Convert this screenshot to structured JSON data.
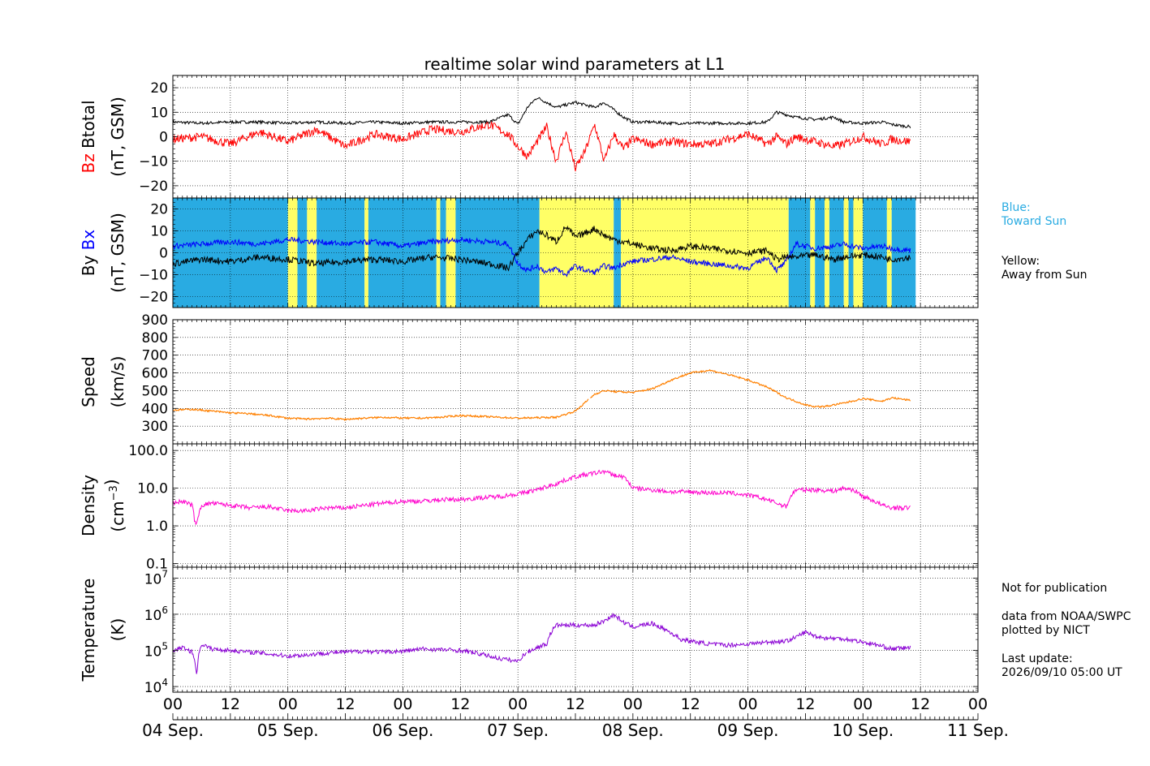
{
  "title": "realtime solar wind parameters at L1",
  "legend": {
    "blue_title": "Blue:",
    "blue_text": "Toward Sun",
    "yellow_title": "Yellow:",
    "yellow_text": "Away from Sun"
  },
  "notes": {
    "publication": "Not for publication",
    "source": "data from NOAA/SWPC",
    "plotted": "plotted by NICT",
    "update_label": "Last update:",
    "update_value": "2026/09/10 05:00 UT"
  },
  "colors": {
    "bz": "#ff0000",
    "btotal": "#000000",
    "bx": "#0000ff",
    "by": "#000000",
    "toward_sun": "#29abe2",
    "away_from_sun": "#ffff66",
    "speed": "#ff8000",
    "density": "#ff00cc",
    "temperature": "#8a00d4",
    "legend_blue_text": "#29abe2"
  },
  "x_axis": {
    "range_hours": [
      0,
      168
    ],
    "tick_labels": [
      "00",
      "12",
      "00",
      "12",
      "00",
      "12",
      "00",
      "12",
      "00",
      "12",
      "00",
      "12",
      "00",
      "12",
      "00"
    ],
    "day_labels": [
      "04 Sep.",
      "05 Sep.",
      "06 Sep.",
      "07 Sep.",
      "08 Sep.",
      "09 Sep.",
      "10 Sep.",
      "11 Sep."
    ]
  },
  "panels": {
    "mag": {
      "ylabel": [
        {
          "parts": [
            {
              "text": "Bz",
              "color": "#ff0000"
            },
            {
              "text": "  Btotal",
              "color": "#000000"
            }
          ]
        },
        {
          "parts": [
            {
              "text": "(nT, GSM)",
              "color": "#000000"
            }
          ]
        }
      ],
      "yticks": [
        "20",
        "10",
        "0",
        "−10",
        "−20"
      ]
    },
    "bxby": {
      "ylabel": [
        {
          "parts": [
            {
              "text": "By  ",
              "color": "#000000"
            },
            {
              "text": "Bx",
              "color": "#0000ff"
            }
          ]
        },
        {
          "parts": [
            {
              "text": "(nT, GSM)",
              "color": "#000000"
            }
          ]
        }
      ],
      "yticks": [
        "20",
        "10",
        "0",
        "−10",
        "−20"
      ]
    },
    "speed": {
      "ylabel": [
        {
          "parts": [
            {
              "text": "Speed",
              "color": "#000000"
            }
          ]
        },
        {
          "parts": [
            {
              "text": "(km/s)",
              "color": "#000000"
            }
          ]
        }
      ],
      "yticks": [
        "900",
        "800",
        "700",
        "600",
        "500",
        "400",
        "300"
      ]
    },
    "density": {
      "ylabel": [
        {
          "parts": [
            {
              "text": "Density",
              "color": "#000000"
            }
          ]
        },
        {
          "parts": [
            {
              "text": "(cm",
              "color": "#000000"
            },
            {
              "text": "−3",
              "color": "#000000",
              "sup": true
            },
            {
              "text": ")",
              "color": "#000000"
            }
          ]
        }
      ],
      "yticks": [
        "100.0",
        "10.0",
        "1.0",
        "0.1"
      ]
    },
    "temperature": {
      "ylabel": [
        {
          "parts": [
            {
              "text": "Temperature",
              "color": "#000000"
            }
          ]
        },
        {
          "parts": [
            {
              "text": "(K)",
              "color": "#000000"
            }
          ]
        }
      ],
      "yticks": [
        {
          "base": "10",
          "exp": "7"
        },
        {
          "base": "10",
          "exp": "6"
        },
        {
          "base": "10",
          "exp": "5"
        },
        {
          "base": "10",
          "exp": "4"
        }
      ]
    }
  },
  "chart_data": [
    {
      "type": "line",
      "panel": "mag",
      "ylim": [
        -25,
        25
      ],
      "grid": true,
      "series": [
        {
          "key": "btotal",
          "x": [
            0,
            6,
            12,
            18,
            24,
            30,
            36,
            42,
            48,
            54,
            60,
            66,
            70,
            72,
            74,
            76,
            78,
            80,
            82,
            84,
            86,
            88,
            90,
            92,
            94,
            96,
            100,
            104,
            108,
            112,
            116,
            120,
            124,
            126,
            128,
            130,
            134,
            138,
            140,
            144,
            148,
            150,
            154
          ],
          "y": [
            6,
            5.5,
            6,
            6,
            5.5,
            6,
            5.5,
            6,
            5.5,
            6,
            6,
            6,
            9,
            5,
            12,
            16,
            14,
            12,
            13,
            14,
            13,
            12,
            14,
            11,
            8,
            6,
            6,
            5.5,
            5.5,
            5.5,
            5.5,
            5.5,
            6,
            10,
            9,
            8,
            7,
            8,
            6,
            5.5,
            6,
            5,
            4
          ]
        },
        {
          "key": "bz",
          "x": [
            0,
            6,
            12,
            18,
            24,
            30,
            36,
            42,
            48,
            54,
            60,
            66,
            70,
            72,
            74,
            76,
            78,
            80,
            82,
            84,
            86,
            88,
            90,
            92,
            94,
            96,
            100,
            104,
            108,
            112,
            116,
            120,
            124,
            126,
            128,
            130,
            134,
            138,
            140,
            144,
            148,
            150,
            154
          ],
          "y": [
            -1,
            0,
            -3,
            2,
            -2,
            3,
            -4,
            1,
            -1,
            3,
            2,
            5,
            1,
            -4,
            -8,
            -2,
            4,
            -10,
            2,
            -13,
            -6,
            5,
            -10,
            1,
            -5,
            -1,
            -3,
            -2,
            -3,
            -3,
            -1,
            1,
            -3,
            0,
            -3,
            0,
            -2,
            -4,
            -3,
            0,
            -3,
            -1,
            -2
          ]
        },
        {
          "key": "bx",
          "x": [
            0,
            6,
            12,
            18,
            24,
            30,
            36,
            42,
            48,
            54,
            60,
            66,
            70,
            72,
            74,
            76,
            78,
            80,
            82,
            84,
            86,
            88,
            90,
            92,
            94,
            96,
            100,
            104,
            108,
            112,
            116,
            120,
            124,
            126,
            128,
            130,
            134,
            138,
            140,
            144,
            148,
            150,
            154
          ],
          "y": [
            3,
            4,
            5,
            4,
            6,
            5,
            4,
            5,
            3,
            5,
            6,
            5,
            4,
            -5,
            -8,
            -6,
            -9,
            -7,
            -10,
            -6,
            -8,
            -9,
            -6,
            -7,
            -5,
            -4,
            -3,
            -2,
            -4,
            -5,
            -6,
            -7,
            -2,
            -8,
            -4,
            4,
            2,
            3,
            4,
            2,
            3,
            2,
            1
          ]
        },
        {
          "key": "by",
          "x": [
            0,
            6,
            12,
            18,
            24,
            30,
            36,
            42,
            48,
            54,
            60,
            66,
            70,
            72,
            74,
            76,
            78,
            80,
            82,
            84,
            86,
            88,
            90,
            92,
            94,
            96,
            100,
            104,
            108,
            112,
            116,
            120,
            124,
            126,
            128,
            130,
            134,
            138,
            140,
            144,
            148,
            150,
            154
          ],
          "y": [
            -5,
            -3,
            -4,
            -2,
            -3,
            -5,
            -4,
            -3,
            -4,
            -2,
            -3,
            -5,
            -7,
            0,
            6,
            10,
            8,
            5,
            12,
            7,
            9,
            11,
            8,
            6,
            5,
            4,
            2,
            1,
            3,
            2,
            1,
            0,
            1,
            -3,
            -2,
            -2,
            -1,
            -3,
            -2,
            -1,
            -2,
            -3,
            -2
          ]
        }
      ]
    },
    {
      "type": "area",
      "panel": "bxby",
      "name": "IMF sector",
      "intervals": [
        {
          "from": 0,
          "to": 24,
          "sector": "toward"
        },
        {
          "from": 24,
          "to": 26,
          "sector": "away"
        },
        {
          "from": 26,
          "to": 28,
          "sector": "toward"
        },
        {
          "from": 28,
          "to": 30,
          "sector": "away"
        },
        {
          "from": 30,
          "to": 40,
          "sector": "toward"
        },
        {
          "from": 40,
          "to": 40.8,
          "sector": "away"
        },
        {
          "from": 40.8,
          "to": 55,
          "sector": "toward"
        },
        {
          "from": 55,
          "to": 55.8,
          "sector": "away"
        },
        {
          "from": 55.8,
          "to": 57,
          "sector": "toward"
        },
        {
          "from": 57,
          "to": 59,
          "sector": "away"
        },
        {
          "from": 59,
          "to": 76.5,
          "sector": "toward"
        },
        {
          "from": 76.5,
          "to": 92,
          "sector": "away"
        },
        {
          "from": 92,
          "to": 93.5,
          "sector": "toward"
        },
        {
          "from": 93.5,
          "to": 128.5,
          "sector": "away"
        },
        {
          "from": 128.5,
          "to": 133,
          "sector": "toward"
        },
        {
          "from": 133,
          "to": 134,
          "sector": "away"
        },
        {
          "from": 134,
          "to": 136,
          "sector": "toward"
        },
        {
          "from": 136,
          "to": 137,
          "sector": "away"
        },
        {
          "from": 137,
          "to": 140,
          "sector": "toward"
        },
        {
          "from": 140,
          "to": 141,
          "sector": "away"
        },
        {
          "from": 141,
          "to": 142,
          "sector": "toward"
        },
        {
          "from": 142,
          "to": 144,
          "sector": "away"
        },
        {
          "from": 144,
          "to": 149,
          "sector": "toward"
        },
        {
          "from": 149,
          "to": 150,
          "sector": "away"
        },
        {
          "from": 150,
          "to": 155,
          "sector": "toward"
        }
      ]
    },
    {
      "type": "line",
      "panel": "speed",
      "ylim": [
        200,
        900
      ],
      "grid": true,
      "series": [
        {
          "key": "speed",
          "x": [
            0,
            4,
            8,
            12,
            16,
            20,
            24,
            28,
            32,
            36,
            40,
            44,
            48,
            52,
            56,
            60,
            64,
            68,
            72,
            80,
            84,
            88,
            90,
            92,
            96,
            100,
            104,
            108,
            112,
            116,
            120,
            124,
            126,
            128,
            130,
            132,
            134,
            136,
            140,
            144,
            148,
            150,
            154
          ],
          "y": [
            390,
            395,
            385,
            375,
            370,
            360,
            345,
            340,
            345,
            338,
            345,
            350,
            345,
            345,
            350,
            360,
            355,
            350,
            345,
            350,
            385,
            480,
            500,
            495,
            490,
            510,
            560,
            600,
            615,
            590,
            560,
            520,
            490,
            460,
            440,
            420,
            410,
            410,
            430,
            455,
            440,
            460,
            445
          ]
        }
      ]
    },
    {
      "type": "line",
      "panel": "density",
      "ylog": true,
      "ylim": [
        0.08,
        150
      ],
      "grid": true,
      "series": [
        {
          "key": "density",
          "x": [
            0,
            2,
            4,
            4.5,
            5,
            6,
            8,
            12,
            16,
            20,
            24,
            28,
            32,
            36,
            40,
            44,
            48,
            52,
            56,
            60,
            64,
            68,
            72,
            76,
            80,
            84,
            88,
            90,
            92,
            94,
            96,
            100,
            104,
            108,
            112,
            116,
            120,
            124,
            126,
            128,
            130,
            134,
            138,
            140,
            142,
            144,
            148,
            150,
            154
          ],
          "y": [
            4,
            4.5,
            3.5,
            1.5,
            1.0,
            3.5,
            4,
            3.5,
            3,
            3.2,
            2.5,
            2.5,
            3,
            3,
            3.5,
            4,
            4.5,
            4.5,
            5,
            5,
            5.5,
            6,
            7,
            9,
            13,
            20,
            25,
            28,
            22,
            20,
            10,
            9,
            8,
            8,
            7.5,
            7.5,
            6.5,
            5,
            4,
            3.2,
            9,
            9,
            8.5,
            10,
            9,
            6,
            3.5,
            3,
            3
          ]
        }
      ]
    },
    {
      "type": "line",
      "panel": "temperature",
      "ylog": true,
      "ylim": [
        7000,
        20000000
      ],
      "grid": true,
      "series": [
        {
          "key": "temperature",
          "x": [
            0,
            2,
            4,
            5,
            6,
            8,
            12,
            16,
            20,
            24,
            28,
            32,
            36,
            40,
            44,
            48,
            52,
            56,
            60,
            64,
            68,
            72,
            74,
            78,
            80,
            84,
            88,
            90,
            92,
            94,
            96,
            100,
            104,
            106,
            108,
            112,
            116,
            120,
            124,
            128,
            130,
            132,
            134,
            136,
            140,
            144,
            148,
            150,
            154
          ],
          "y": [
            100000,
            120000,
            90000,
            20000,
            150000,
            110000,
            100000,
            90000,
            80000,
            70000,
            75000,
            85000,
            90000,
            95000,
            90000,
            95000,
            110000,
            105000,
            100000,
            80000,
            60000,
            50000,
            90000,
            150000,
            500000,
            500000,
            500000,
            650000,
            950000,
            600000,
            450000,
            550000,
            300000,
            200000,
            180000,
            150000,
            140000,
            150000,
            170000,
            180000,
            230000,
            320000,
            250000,
            220000,
            210000,
            170000,
            130000,
            110000,
            120000
          ]
        }
      ]
    }
  ]
}
